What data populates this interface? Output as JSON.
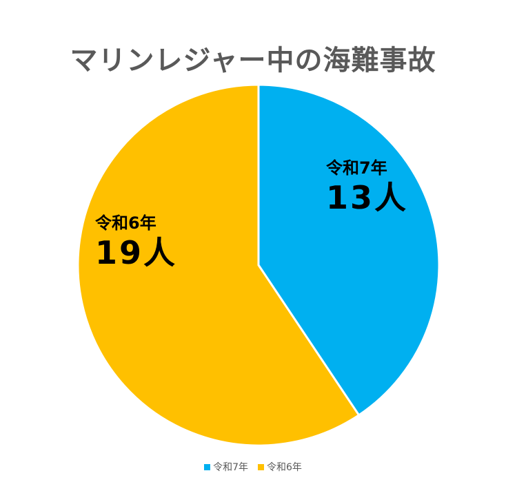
{
  "chart_data": {
    "type": "pie",
    "title": "マリンレジャー中の海難事故",
    "categories": [
      "令和7年",
      "令和6年"
    ],
    "values": [
      13,
      19
    ],
    "unit": "人",
    "colors": [
      "#00B0F0",
      "#FFC000"
    ],
    "start_angle_deg": 0,
    "direction": "clockwise",
    "legend_position": "bottom",
    "data_labels": [
      {
        "category": "令和7年",
        "value": "13",
        "unit": "人"
      },
      {
        "category": "令和6年",
        "value": "19",
        "unit": "人"
      }
    ]
  },
  "legend": {
    "items": [
      {
        "label": "令和7年",
        "color": "#00B0F0"
      },
      {
        "label": "令和6年",
        "color": "#FFC000"
      }
    ]
  }
}
